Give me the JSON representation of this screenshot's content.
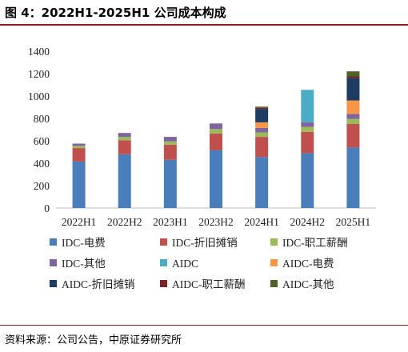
{
  "title": "图 4：2022H1-2025H1 公司成本构成",
  "source": "资料来源：公司公告，中原证券研究所",
  "chart_data": {
    "type": "bar",
    "stacked": true,
    "title": "",
    "xlabel": "",
    "ylabel": "",
    "ylim": [
      0,
      1400
    ],
    "yticks": [
      0,
      200,
      400,
      600,
      800,
      1000,
      1200,
      1400
    ],
    "grid": false,
    "legend_position": "bottom",
    "categories": [
      "2022H1",
      "2022H2",
      "2023H1",
      "2023H2",
      "2024H1",
      "2024H2",
      "2025H1"
    ],
    "series": [
      {
        "name": "IDC-电费",
        "color": "#4a7ebb",
        "values": [
          415,
          480,
          430,
          515,
          455,
          490,
          540
        ]
      },
      {
        "name": "IDC-折旧摊销",
        "color": "#c0504d",
        "values": [
          120,
          125,
          135,
          150,
          180,
          190,
          210
        ]
      },
      {
        "name": "IDC-职工薪酬",
        "color": "#9bbb59",
        "values": [
          20,
          30,
          30,
          40,
          40,
          45,
          45
        ]
      },
      {
        "name": "IDC-其他",
        "color": "#8064a2",
        "values": [
          20,
          35,
          40,
          50,
          40,
          40,
          45
        ]
      },
      {
        "name": "AIDC",
        "color": "#4bacc6",
        "values": [
          0,
          0,
          0,
          0,
          0,
          290,
          0
        ]
      },
      {
        "name": "AIDC-电费",
        "color": "#f79646",
        "values": [
          0,
          0,
          0,
          0,
          50,
          0,
          120
        ]
      },
      {
        "name": "AIDC-折旧摊销",
        "color": "#1f3d63",
        "values": [
          0,
          0,
          0,
          0,
          120,
          0,
          200
        ]
      },
      {
        "name": "AIDC-职工薪酬",
        "color": "#7b2323",
        "values": [
          0,
          0,
          0,
          0,
          10,
          0,
          15
        ]
      },
      {
        "name": "AIDC-其他",
        "color": "#4f6228",
        "values": [
          0,
          0,
          0,
          0,
          10,
          0,
          45
        ]
      }
    ]
  }
}
